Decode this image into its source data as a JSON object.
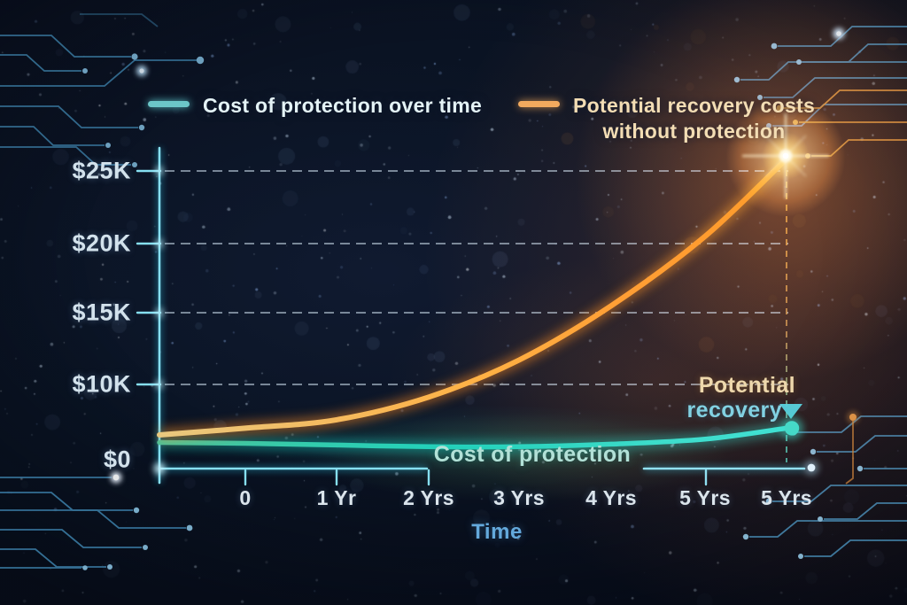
{
  "legend": {
    "item1": {
      "label": "Cost of protection over time",
      "color": "#6cc6c8"
    },
    "item2": {
      "label_line1": "Potential recovery costs",
      "label_line2": "without protection",
      "color": "#f3aa5e"
    }
  },
  "y_axis": {
    "labels": [
      "$25K",
      "$20K",
      "$15K",
      "$10K",
      "$0"
    ]
  },
  "x_axis": {
    "labels": [
      "0",
      "1 Yr",
      "2 Yrs",
      "3 Yrs",
      "4 Yrs",
      "5 Yrs",
      "5 Yrs"
    ],
    "title": "Time"
  },
  "annotations": {
    "cost_curve_label": "Cost of protection",
    "recovery_marker_line1": "Potential",
    "recovery_marker_line2": "recovery"
  },
  "chart_data": {
    "type": "line",
    "x_tick_labels": [
      "0",
      "1 Yr",
      "2 Yrs",
      "3 Yrs",
      "4 Yrs",
      "5 Yrs",
      "5 Yrs"
    ],
    "xlabel": "Time",
    "y_tick_labels": [
      "$0",
      "$10K",
      "$15K",
      "$20K",
      "$25K"
    ],
    "y_tick_values_usd": [
      0,
      10000,
      15000,
      20000,
      25000
    ],
    "ylim_usd": [
      0,
      27000
    ],
    "grid": "horizontal-dashed",
    "legend_position": "top",
    "x_includes_axis_start": true,
    "series": [
      {
        "name": "Cost of protection over time",
        "color": "#26d3c0",
        "values_usd": [
          3100,
          3000,
          2800,
          2600,
          2600,
          2900,
          3500,
          4800
        ]
      },
      {
        "name": "Potential recovery costs without protection",
        "color": "#ff9434",
        "values_usd": [
          4000,
          4800,
          5800,
          8500,
          11700,
          15500,
          20500,
          26000
        ]
      }
    ],
    "end_markers": {
      "protection": "teal dot with down-triangle pointer",
      "recovery": "orange starburst glow"
    }
  }
}
